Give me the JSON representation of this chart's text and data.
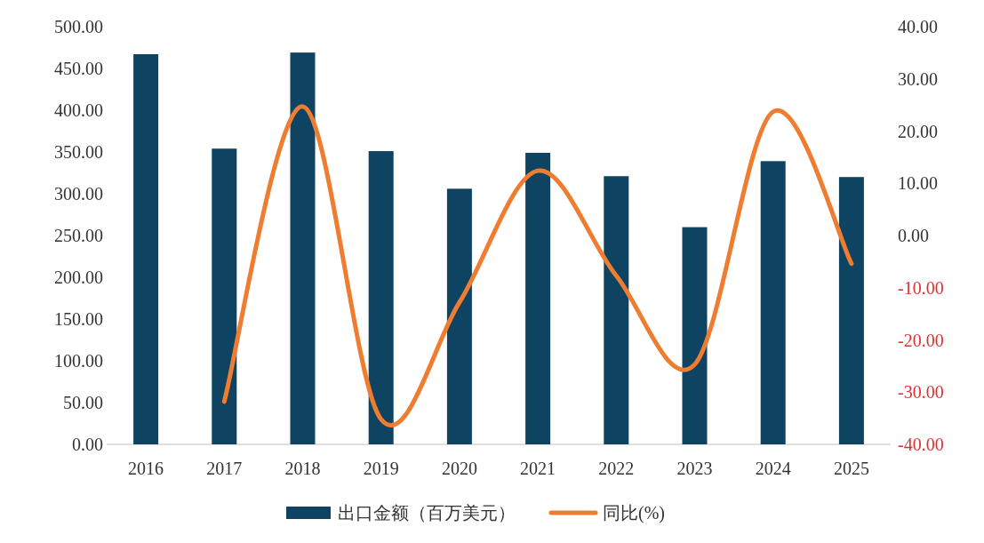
{
  "chart_data": {
    "type": "bar",
    "categories": [
      "2016",
      "2017",
      "2018",
      "2019",
      "2020",
      "2021",
      "2022",
      "2023",
      "2024",
      "2025"
    ],
    "series": [
      {
        "name": "出口金额（百万美元）",
        "color": "#0e4361",
        "values": [
          467,
          354,
          469,
          351,
          306,
          349,
          321,
          260,
          339,
          320
        ]
      },
      {
        "name": "同比(%)",
        "type": "line",
        "axis": "y2",
        "color": "#ee7d31",
        "values": [
          null,
          -31.8,
          24.7,
          -35.2,
          -12.8,
          12.4,
          -7.7,
          -24.7,
          23.7,
          -5.4
        ]
      }
    ],
    "ylim": [
      0,
      500
    ],
    "yticks": [
      {
        "value": 0,
        "label": "0.00"
      },
      {
        "value": 50,
        "label": "50.00"
      },
      {
        "value": 100,
        "label": "100.00"
      },
      {
        "value": 150,
        "label": "150.00"
      },
      {
        "value": 200,
        "label": "200.00"
      },
      {
        "value": 250,
        "label": "250.00"
      },
      {
        "value": 300,
        "label": "300.00"
      },
      {
        "value": 350,
        "label": "350.00"
      },
      {
        "value": 400,
        "label": "400.00"
      },
      {
        "value": 450,
        "label": "450.00"
      },
      {
        "value": 500,
        "label": "500.00"
      }
    ],
    "y2lim": [
      -40,
      40
    ],
    "y2ticks": [
      {
        "value": -40,
        "label": "-40.00"
      },
      {
        "value": -30,
        "label": "-30.00"
      },
      {
        "value": -20,
        "label": "-20.00"
      },
      {
        "value": -10,
        "label": "-10.00"
      },
      {
        "value": 0,
        "label": "0.00"
      },
      {
        "value": 10,
        "label": "10.00"
      },
      {
        "value": 20,
        "label": "20.00"
      },
      {
        "value": 30,
        "label": "30.00"
      },
      {
        "value": 40,
        "label": "40.00"
      }
    ],
    "legend": "bottom",
    "grid": false
  }
}
